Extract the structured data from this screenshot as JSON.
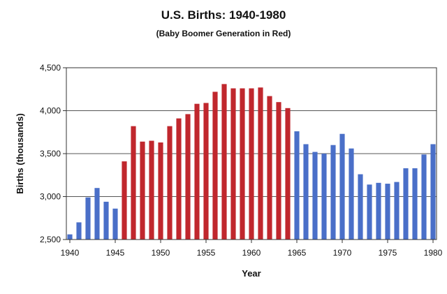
{
  "chart_data": {
    "type": "bar",
    "title": "U.S. Births: 1940-1980",
    "subtitle": "(Baby Boomer Generation in Red)",
    "xlabel": "Year",
    "ylabel": "Births (thousands)",
    "ylim": [
      2500,
      4500
    ],
    "yticks": [
      "2,500",
      "3,000",
      "3,500",
      "4,000",
      "4,500"
    ],
    "ytick_values": [
      2500,
      3000,
      3500,
      4000,
      4500
    ],
    "xticks": [
      "1940",
      "1945",
      "1950",
      "1955",
      "1960",
      "1965",
      "1970",
      "1975",
      "1980"
    ],
    "xtick_values": [
      1940,
      1945,
      1950,
      1955,
      1960,
      1965,
      1970,
      1975,
      1980
    ],
    "grid": true,
    "legend": "none",
    "colors": {
      "blue": "#4a6fc8",
      "red": "#c0272d",
      "gridline": "#555555",
      "plot_bg": "#ffffff"
    },
    "series": [
      {
        "years": [
          1940,
          1941,
          1942,
          1943,
          1944,
          1945,
          1946,
          1947,
          1948,
          1949,
          1950,
          1951,
          1952,
          1953,
          1954,
          1955,
          1956,
          1957,
          1958,
          1959,
          1960,
          1961,
          1962,
          1963,
          1964,
          1965,
          1966,
          1967,
          1968,
          1969,
          1970,
          1971,
          1972,
          1973,
          1974,
          1975,
          1976,
          1977,
          1978,
          1979,
          1980
        ],
        "values": [
          2560,
          2700,
          2990,
          3100,
          2940,
          2860,
          3410,
          3820,
          3640,
          3650,
          3630,
          3820,
          3910,
          3960,
          4080,
          4090,
          4220,
          4310,
          4260,
          4260,
          4260,
          4270,
          4170,
          4100,
          4030,
          3760,
          3610,
          3520,
          3500,
          3600,
          3730,
          3560,
          3260,
          3140,
          3160,
          3150,
          3170,
          3330,
          3330,
          3490,
          3610
        ],
        "colors": [
          "blue",
          "blue",
          "blue",
          "blue",
          "blue",
          "blue",
          "red",
          "red",
          "red",
          "red",
          "red",
          "red",
          "red",
          "red",
          "red",
          "red",
          "red",
          "red",
          "red",
          "red",
          "red",
          "red",
          "red",
          "red",
          "red",
          "blue",
          "blue",
          "blue",
          "blue",
          "blue",
          "blue",
          "blue",
          "blue",
          "blue",
          "blue",
          "blue",
          "blue",
          "blue",
          "blue",
          "blue",
          "blue"
        ]
      }
    ]
  }
}
